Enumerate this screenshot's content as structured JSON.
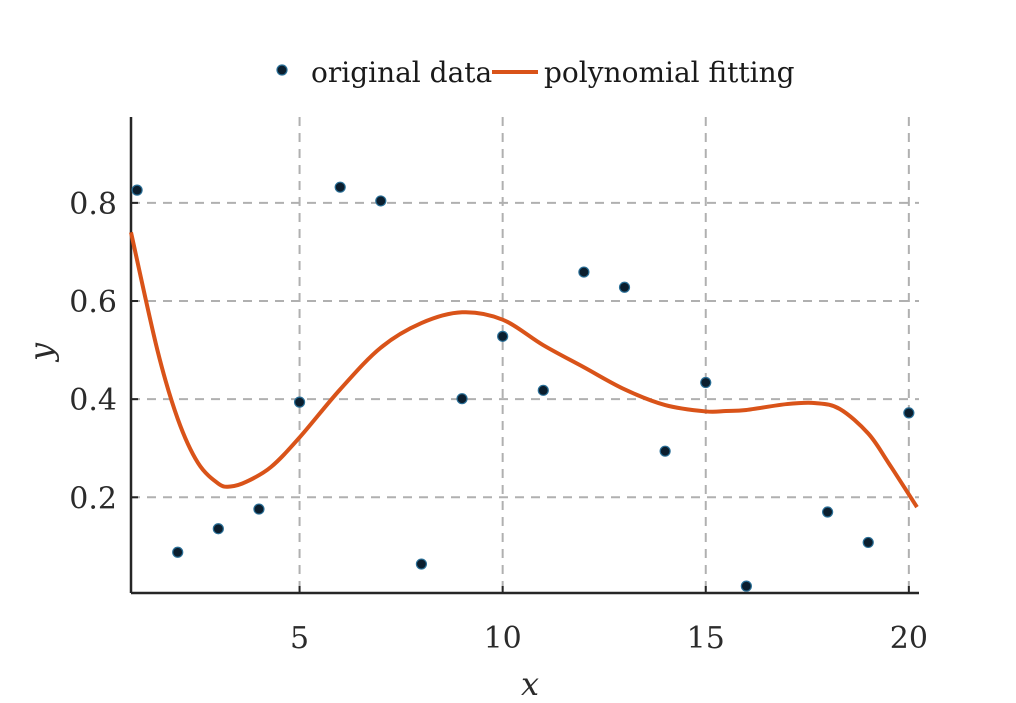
{
  "chart_data": {
    "type": "scatter",
    "xlabel": "x",
    "ylabel": "y",
    "xlim": [
      0.85,
      20.25
    ],
    "ylim": [
      0.005,
      0.975
    ],
    "xticks": [
      5,
      10,
      15,
      20
    ],
    "yticks": [
      0.2,
      0.4,
      0.6,
      0.8
    ],
    "grid": true,
    "legend_position": "top-center",
    "legend": {
      "points_label": "original data",
      "line_label": "polynomial fitting"
    },
    "colors": {
      "points_fill": "#0b1e2e",
      "points_edge": "#2a6f97",
      "line": "#d95319"
    },
    "series": [
      {
        "name": "original data",
        "kind": "scatter",
        "x": [
          1,
          2,
          3,
          4,
          5,
          6,
          7,
          8,
          9,
          10,
          11,
          12,
          13,
          14,
          15,
          16,
          17,
          18,
          19,
          20
        ],
        "y": [
          0.826,
          0.088,
          0.136,
          0.176,
          0.394,
          0.832,
          0.804,
          0.064,
          0.401,
          0.528,
          0.418,
          0.659,
          0.628,
          0.294,
          0.434,
          0.019,
          null,
          0.17,
          0.108,
          0.372
        ]
      },
      {
        "name": "polynomial fitting",
        "kind": "line",
        "x": [
          0.85,
          1.5,
          2,
          2.5,
          3,
          3.3,
          3.7,
          4.3,
          5,
          6,
          7,
          8,
          9,
          10,
          11,
          12,
          13,
          14,
          15,
          15.5,
          16,
          17,
          17.7,
          18.3,
          19,
          19.5,
          20.2
        ],
        "y": [
          0.74,
          0.5,
          0.36,
          0.27,
          0.228,
          0.222,
          0.232,
          0.262,
          0.322,
          0.42,
          0.505,
          0.555,
          0.577,
          0.562,
          0.51,
          0.465,
          0.42,
          0.388,
          0.375,
          0.376,
          0.378,
          0.39,
          0.392,
          0.38,
          0.33,
          0.27,
          0.18
        ]
      }
    ]
  }
}
